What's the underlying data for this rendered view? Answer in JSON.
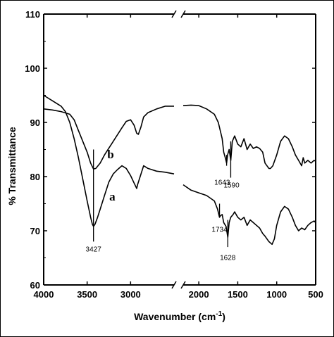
{
  "chart_data": {
    "type": "line",
    "xlabel": "Wavenumber (cm",
    "xlabel_sup": "-1",
    "xlabel_end": ")",
    "ylabel": "% Transmittance",
    "xlim": [
      4000,
      500
    ],
    "ylim": [
      60,
      110
    ],
    "x_ticks": [
      "4000",
      "3500",
      "3000",
      "2000",
      "1500",
      "1000",
      "500"
    ],
    "y_ticks": [
      "60",
      "70",
      "80",
      "90",
      "100",
      "110"
    ],
    "axis_break": "2500-2200",
    "grid": false,
    "series": [
      {
        "name": "b",
        "points": [
          [
            4000,
            92.5
          ],
          [
            3900,
            92.3
          ],
          [
            3800,
            92
          ],
          [
            3700,
            91.5
          ],
          [
            3650,
            90.5
          ],
          [
            3600,
            88.5
          ],
          [
            3550,
            86.5
          ],
          [
            3500,
            84.5
          ],
          [
            3460,
            82.5
          ],
          [
            3427,
            81.4
          ],
          [
            3400,
            81.5
          ],
          [
            3350,
            82.5
          ],
          [
            3300,
            84
          ],
          [
            3200,
            86.5
          ],
          [
            3100,
            89
          ],
          [
            3050,
            90.2
          ],
          [
            3000,
            90.5
          ],
          [
            2960,
            89.5
          ],
          [
            2930,
            88
          ],
          [
            2910,
            87.8
          ],
          [
            2880,
            89.2
          ],
          [
            2850,
            91
          ],
          [
            2800,
            91.8
          ],
          [
            2700,
            92.5
          ],
          [
            2600,
            93
          ],
          [
            2500,
            93
          ],
          "break",
          [
            2200,
            93.1
          ],
          [
            2100,
            93.2
          ],
          [
            2000,
            93.1
          ],
          [
            1900,
            92.5
          ],
          [
            1800,
            91.5
          ],
          [
            1750,
            90
          ],
          [
            1700,
            87
          ],
          [
            1680,
            84.5
          ],
          [
            1660,
            83.5
          ],
          [
            1643,
            82.5
          ],
          [
            1630,
            84
          ],
          [
            1610,
            85
          ],
          [
            1590,
            83
          ],
          [
            1570,
            86.5
          ],
          [
            1540,
            87.5
          ],
          [
            1500,
            86
          ],
          [
            1460,
            85.5
          ],
          [
            1420,
            87
          ],
          [
            1380,
            85
          ],
          [
            1340,
            86
          ],
          [
            1300,
            85.2
          ],
          [
            1260,
            85.5
          ],
          [
            1220,
            85.2
          ],
          [
            1180,
            84.5
          ],
          [
            1150,
            82.5
          ],
          [
            1100,
            81.5
          ],
          [
            1080,
            81.5
          ],
          [
            1050,
            82
          ],
          [
            1000,
            84
          ],
          [
            950,
            86.5
          ],
          [
            900,
            87.5
          ],
          [
            850,
            87
          ],
          [
            800,
            85.5
          ],
          [
            760,
            84
          ],
          [
            720,
            83
          ],
          [
            680,
            82
          ],
          [
            660,
            83.5
          ],
          [
            640,
            82.5
          ],
          [
            600,
            83
          ],
          [
            560,
            82.5
          ],
          [
            520,
            83
          ],
          [
            500,
            82.8
          ]
        ]
      },
      {
        "name": "a",
        "points": [
          [
            4000,
            95
          ],
          [
            3900,
            94
          ],
          [
            3800,
            93
          ],
          [
            3750,
            92
          ],
          [
            3700,
            90
          ],
          [
            3650,
            87
          ],
          [
            3600,
            83.5
          ],
          [
            3550,
            79.5
          ],
          [
            3500,
            75.5
          ],
          [
            3460,
            72.5
          ],
          [
            3440,
            71.2
          ],
          [
            3427,
            70.8
          ],
          [
            3410,
            71.2
          ],
          [
            3380,
            72.5
          ],
          [
            3350,
            74
          ],
          [
            3300,
            76.5
          ],
          [
            3250,
            79
          ],
          [
            3200,
            80.5
          ],
          [
            3150,
            81.3
          ],
          [
            3100,
            82
          ],
          [
            3050,
            81.5
          ],
          [
            3000,
            80.2
          ],
          [
            2960,
            78.8
          ],
          [
            2930,
            77.8
          ],
          [
            2920,
            78.5
          ],
          [
            2880,
            80.5
          ],
          [
            2850,
            82
          ],
          [
            2800,
            81.5
          ],
          [
            2700,
            81
          ],
          [
            2600,
            80.8
          ],
          [
            2500,
            80.5
          ],
          "break",
          [
            2200,
            78.5
          ],
          [
            2100,
            77.5
          ],
          [
            2000,
            77
          ],
          [
            1900,
            76.5
          ],
          [
            1800,
            75.5
          ],
          [
            1760,
            74
          ],
          [
            1734,
            72.5
          ],
          [
            1720,
            72.8
          ],
          [
            1700,
            73
          ],
          [
            1680,
            71.5
          ],
          [
            1650,
            70.8
          ],
          [
            1628,
            68.8
          ],
          [
            1610,
            71.5
          ],
          [
            1590,
            72.5
          ],
          [
            1560,
            73
          ],
          [
            1540,
            73.5
          ],
          [
            1500,
            72.5
          ],
          [
            1460,
            72
          ],
          [
            1420,
            72.5
          ],
          [
            1380,
            71
          ],
          [
            1340,
            72
          ],
          [
            1300,
            71.5
          ],
          [
            1260,
            71
          ],
          [
            1220,
            70.5
          ],
          [
            1180,
            69.5
          ],
          [
            1150,
            69
          ],
          [
            1100,
            68
          ],
          [
            1060,
            67.5
          ],
          [
            1030,
            68.5
          ],
          [
            1000,
            71
          ],
          [
            950,
            73.5
          ],
          [
            900,
            74.5
          ],
          [
            850,
            74
          ],
          [
            800,
            72.5
          ],
          [
            760,
            71
          ],
          [
            720,
            70
          ],
          [
            680,
            70.5
          ],
          [
            640,
            70.2
          ],
          [
            600,
            71
          ],
          [
            560,
            71.5
          ],
          [
            520,
            71.8
          ],
          [
            500,
            71.5
          ]
        ]
      }
    ],
    "annotations": [
      {
        "label": "3427",
        "x": 3427,
        "y": 66.2,
        "line_from": 85,
        "line_to": 68
      },
      {
        "label": "1643",
        "x": 1700,
        "y": 78.5,
        "line_from": 84,
        "line_to": 82
      },
      {
        "label": "1590",
        "x": 1580,
        "y": 78,
        "line_from": 86.5,
        "line_to": 79.8
      },
      {
        "label": "1734",
        "x": 1734,
        "y": 69.8,
        "line_from": 75,
        "line_to": 72.5
      },
      {
        "label": "1628",
        "x": 1628,
        "y": 64.6,
        "line_from": 72,
        "line_to": 67
      }
    ],
    "curve_labels": [
      {
        "label": "b",
        "x": 3230,
        "y": 83.4
      },
      {
        "label": "a",
        "x": 3210,
        "y": 75.6
      }
    ]
  }
}
